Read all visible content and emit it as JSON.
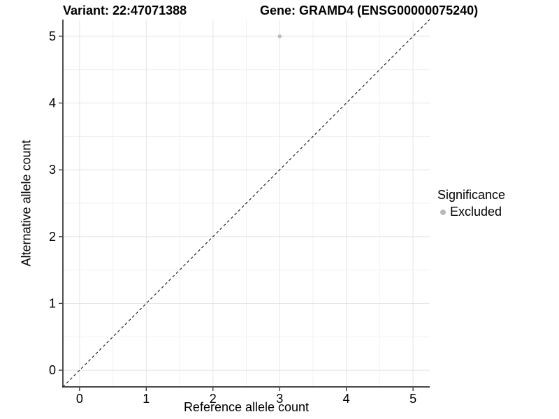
{
  "header": {
    "variant_title": "Variant: 22:47071388",
    "gene_title": "Gene: GRAMD4 (ENSG00000075240)"
  },
  "chart_data": {
    "type": "scatter",
    "title_left": "Variant: 22:47071388",
    "title_right": "Gene: GRAMD4 (ENSG00000075240)",
    "xlabel": "Reference allele count",
    "ylabel": "Alternative allele count",
    "xlim": [
      -0.25,
      5.25
    ],
    "ylim": [
      -0.25,
      5.25
    ],
    "x_ticks": [
      0,
      1,
      2,
      3,
      4,
      5
    ],
    "y_ticks": [
      0,
      1,
      2,
      3,
      4,
      5
    ],
    "grid": true,
    "minor_grid": true,
    "points": [
      {
        "x": 3,
        "y": 5,
        "series": "Excluded"
      }
    ],
    "reference_line": {
      "slope": 1,
      "intercept": 0,
      "style": "dashed",
      "color": "#000000"
    },
    "legend": {
      "title": "Significance",
      "position": "right",
      "entries": [
        {
          "label": "Excluded",
          "color": "#b9b9b9"
        }
      ]
    },
    "colors": {
      "point": "#b9b9b9",
      "grid_major": "#e4e4e4",
      "grid_minor": "#f1f1f1",
      "axis_line": "#2f2f2f",
      "tick_mark": "#2f2f2f",
      "tick_label": "#000000",
      "background": "#ffffff"
    }
  }
}
